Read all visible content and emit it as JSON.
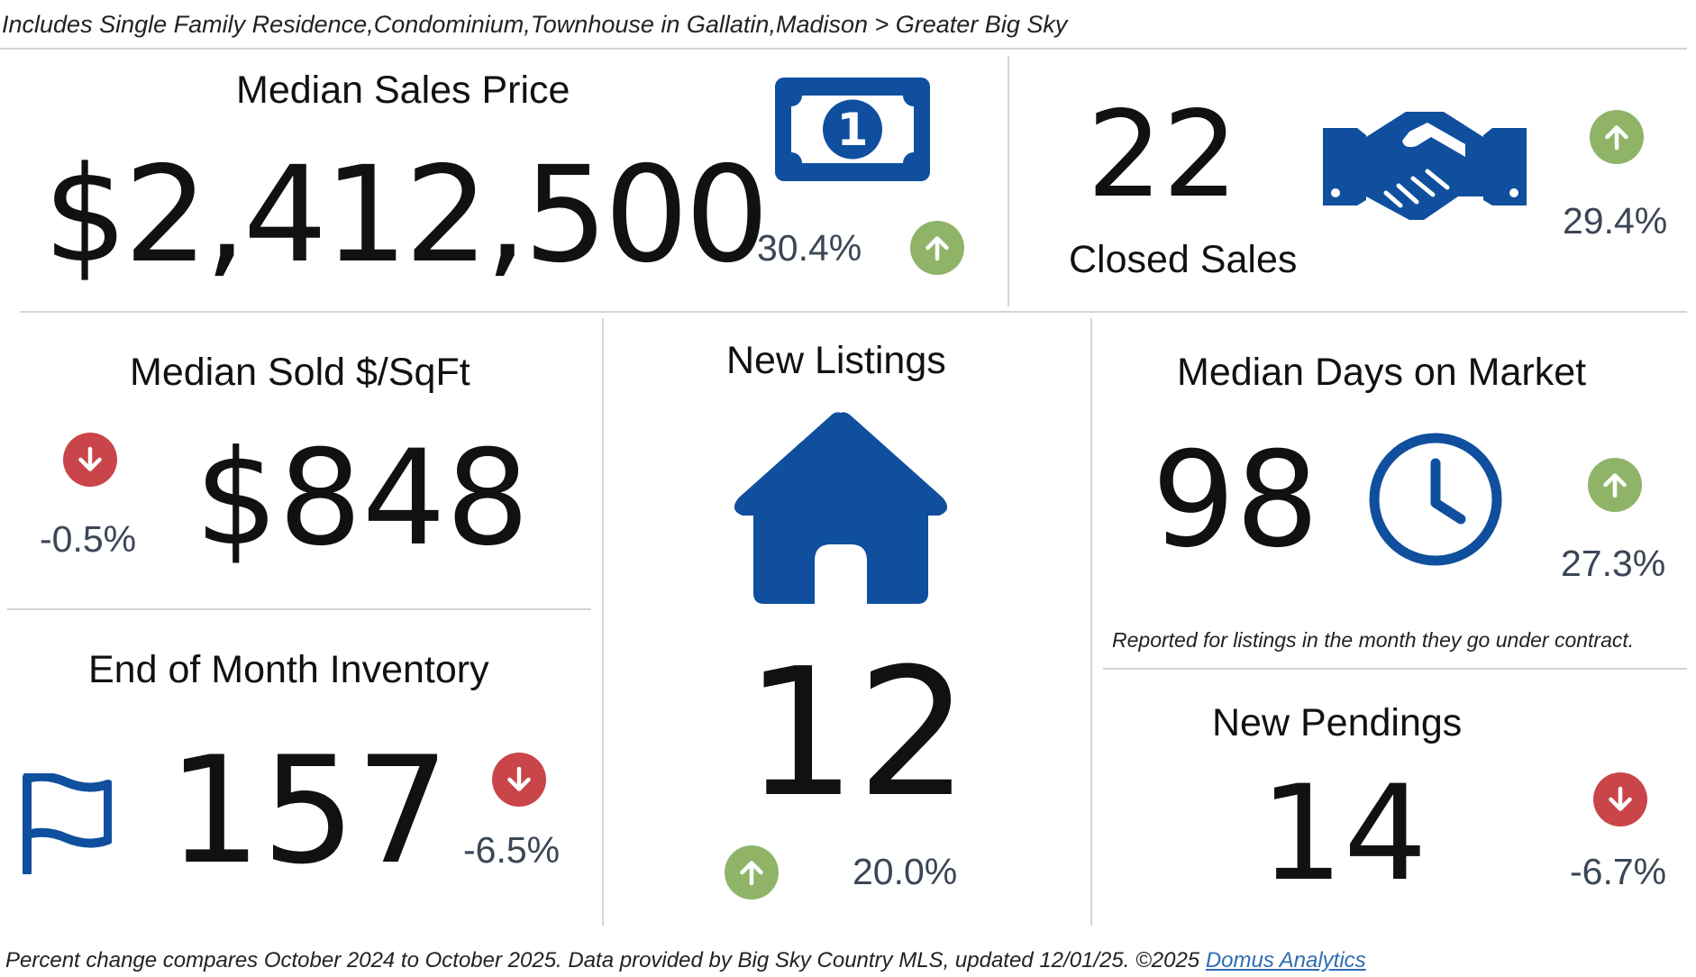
{
  "subtitle": "Includes Single Family Residence,Condominium,Townhouse in Gallatin,Madison > Greater Big Sky",
  "colors": {
    "brand_blue": "#0f4f9e",
    "up_green": "#8fb468",
    "down_red": "#c9454a",
    "pct_text": "#3b4656"
  },
  "median_sales_price": {
    "title": "Median Sales Price",
    "value": "$2,412,500",
    "change": "30.4%",
    "direction": "up",
    "icon": "dollar-bill-icon"
  },
  "closed_sales": {
    "title": "Closed Sales",
    "value": "22",
    "change": "29.4%",
    "direction": "up",
    "icon": "handshake-icon"
  },
  "median_sold_sqft": {
    "title": "Median Sold $/SqFt",
    "value": "$848",
    "change": "-0.5%",
    "direction": "down"
  },
  "new_listings": {
    "title": "New Listings",
    "value": "12",
    "change": "20.0%",
    "direction": "up",
    "icon": "house-icon"
  },
  "median_days_on_market": {
    "title": "Median Days on Market",
    "value": "98",
    "change": "27.3%",
    "direction": "up",
    "icon": "clock-icon",
    "note": "Reported for listings in the month they go under contract."
  },
  "end_of_month_inventory": {
    "title": "End of Month Inventory",
    "value": "157",
    "change": "-6.5%",
    "direction": "down",
    "icon": "flag-icon"
  },
  "new_pendings": {
    "title": "New Pendings",
    "value": "14",
    "change": "-6.7%",
    "direction": "down"
  },
  "footer": {
    "text": "Percent change compares October 2024 to October 2025.  Data provided by Big Sky Country MLS, updated 12/01/25. ©2025 ",
    "link_text": "Domus Analytics"
  }
}
